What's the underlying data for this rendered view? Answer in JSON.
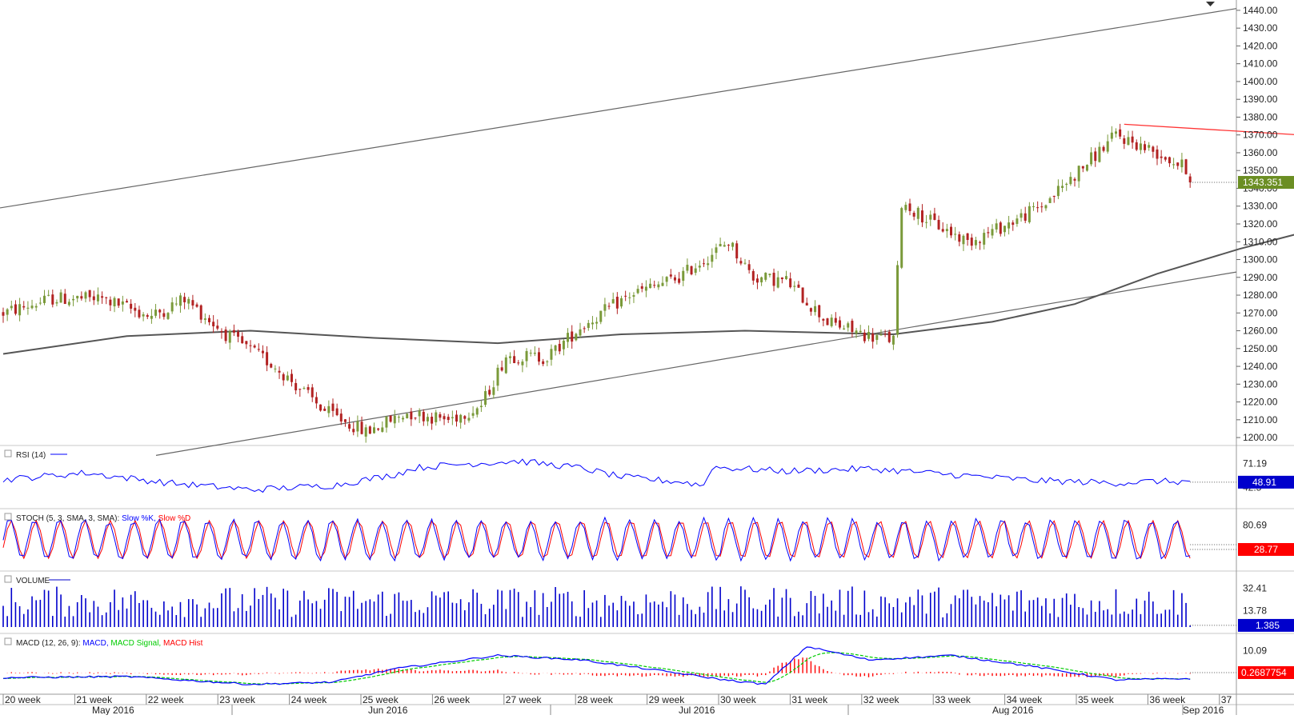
{
  "chart_data": {
    "type": "candlestick",
    "symbol_menu_icon": "triangle-down-icon",
    "colors": {
      "bull": "#7a9a3a",
      "bear": "#b22222",
      "sma": "#555555",
      "channel": "#666666",
      "resistance": "#ff3333",
      "support": "#c8d84a",
      "rsi": "#0000ff",
      "stoch_k": "#0000ff",
      "stoch_d": "#ff0000",
      "volume": "#0000cc",
      "macd": "#0000ff",
      "macd_signal": "#00cc00",
      "macd_hist": "#ff0000",
      "last_price_tag": "#6b8e23",
      "indicator_tag_blue": "#0000cc",
      "indicator_tag_red": "#ff0000"
    },
    "price_axis": {
      "ticks": [
        "1440.00",
        "1430.00",
        "1420.00",
        "1410.00",
        "1400.00",
        "1390.00",
        "1380.00",
        "1370.00",
        "1360.00",
        "1350.00",
        "1340.00",
        "1330.00",
        "1320.00",
        "1310.00",
        "1300.00",
        "1290.00",
        "1280.00",
        "1270.00",
        "1260.00",
        "1250.00",
        "1240.00",
        "1230.00",
        "1220.00",
        "1210.00",
        "1200.00"
      ],
      "ylim": [
        1196,
        1444
      ],
      "last_price": "1343.351",
      "last_value": 1343.35
    },
    "time_axis": {
      "weeks": [
        "20 week",
        "21 week",
        "22 week",
        "23 week",
        "24 week",
        "25 week",
        "26 week",
        "27 week",
        "28 week",
        "29 week",
        "30 week",
        "31 week",
        "32 week",
        "33 week",
        "34 week",
        "35 week",
        "36 week",
        "37"
      ],
      "months": [
        "May 2016",
        "Jun 2016",
        "Jul 2016",
        "Aug 2016",
        "Sep 2016"
      ]
    },
    "candles": {
      "count": 289,
      "keypoints": [
        [
          0,
          1270
        ],
        [
          12,
          1278
        ],
        [
          24,
          1278
        ],
        [
          36,
          1268
        ],
        [
          44,
          1278
        ],
        [
          54,
          1258
        ],
        [
          66,
          1240
        ],
        [
          78,
          1215
        ],
        [
          88,
          1203
        ],
        [
          98,
          1214
        ],
        [
          108,
          1210
        ],
        [
          116,
          1218
        ],
        [
          122,
          1246
        ],
        [
          132,
          1245
        ],
        [
          140,
          1262
        ],
        [
          152,
          1280
        ],
        [
          164,
          1290
        ],
        [
          176,
          1310
        ],
        [
          182,
          1290
        ],
        [
          190,
          1288
        ],
        [
          200,
          1265
        ],
        [
          210,
          1257
        ],
        [
          216,
          1255
        ],
        [
          218,
          1332
        ],
        [
          226,
          1320
        ],
        [
          234,
          1310
        ],
        [
          242,
          1318
        ],
        [
          252,
          1330
        ],
        [
          262,
          1352
        ],
        [
          270,
          1370
        ],
        [
          280,
          1360
        ],
        [
          288,
          1350
        ]
      ]
    },
    "sma": {
      "keypoints": [
        [
          0,
          1247
        ],
        [
          30,
          1257
        ],
        [
          60,
          1260
        ],
        [
          90,
          1256
        ],
        [
          120,
          1253
        ],
        [
          150,
          1258
        ],
        [
          180,
          1260
        ],
        [
          216,
          1258
        ],
        [
          240,
          1265
        ],
        [
          260,
          1275
        ],
        [
          280,
          1292
        ],
        [
          300,
          1306
        ],
        [
          320,
          1318
        ],
        [
          336,
          1327
        ],
        [
          352,
          1337
        ],
        [
          366,
          1340
        ],
        [
          380,
          1342
        ]
      ]
    },
    "trendlines": {
      "upper_channel": [
        [
          1,
          1329
        ],
        [
          2,
          1441
        ]
      ],
      "lower_channel": [
        [
          1,
          1190
        ],
        [
          2,
          1293
        ]
      ],
      "resistance": [
        [
          272,
          1376
        ],
        [
          421,
          1355
        ]
      ],
      "support": [
        [
          327,
          1312
        ],
        [
          421,
          1355
        ]
      ]
    },
    "rsi": {
      "title": "RSI (14)",
      "ticks": [
        "71.19",
        "42.5"
      ],
      "last": "48.91",
      "keypoints": [
        [
          0,
          52
        ],
        [
          20,
          60
        ],
        [
          40,
          48
        ],
        [
          60,
          40
        ],
        [
          80,
          45
        ],
        [
          95,
          58
        ],
        [
          100,
          66
        ],
        [
          110,
          70
        ],
        [
          125,
          74
        ],
        [
          140,
          66
        ],
        [
          150,
          55
        ],
        [
          165,
          49
        ],
        [
          170,
          45
        ],
        [
          172,
          67
        ],
        [
          190,
          62
        ],
        [
          210,
          65
        ],
        [
          230,
          58
        ],
        [
          250,
          51
        ],
        [
          270,
          48
        ],
        [
          280,
          50
        ],
        [
          300,
          48
        ],
        [
          320,
          53
        ],
        [
          340,
          65
        ],
        [
          360,
          58
        ],
        [
          380,
          52
        ],
        [
          400,
          60
        ],
        [
          420,
          57
        ],
        [
          440,
          52
        ],
        [
          460,
          58
        ],
        [
          466,
          49
        ]
      ]
    },
    "stoch": {
      "title": "STOCH (5, 3, SMA, 3, SMA):",
      "legend": [
        "Slow %K,",
        "Slow %D"
      ],
      "ticks": [
        "80.69"
      ],
      "last": "28.77",
      "cycles": 48
    },
    "volume": {
      "title": "VOLUME",
      "ticks": [
        "32.41",
        "13.78"
      ],
      "last": "1.385",
      "bars": 289
    },
    "macd": {
      "title": "MACD (12, 26, 9):",
      "legend": [
        "MACD,",
        "MACD Signal,",
        "MACD Hist"
      ],
      "ticks": [
        "10.09"
      ],
      "last": "0.2687754",
      "keypoints": [
        [
          0,
          -2
        ],
        [
          30,
          -1.5
        ],
        [
          60,
          -5
        ],
        [
          80,
          -4
        ],
        [
          95,
          2
        ],
        [
          120,
          8
        ],
        [
          140,
          6
        ],
        [
          160,
          1
        ],
        [
          175,
          -3
        ],
        [
          185,
          -5
        ],
        [
          195,
          12
        ],
        [
          210,
          6
        ],
        [
          230,
          8
        ],
        [
          250,
          3
        ],
        [
          270,
          -3
        ],
        [
          300,
          -2
        ],
        [
          320,
          4
        ],
        [
          345,
          5
        ],
        [
          360,
          -4
        ],
        [
          380,
          0
        ],
        [
          400,
          -1
        ],
        [
          420,
          0
        ]
      ]
    }
  }
}
